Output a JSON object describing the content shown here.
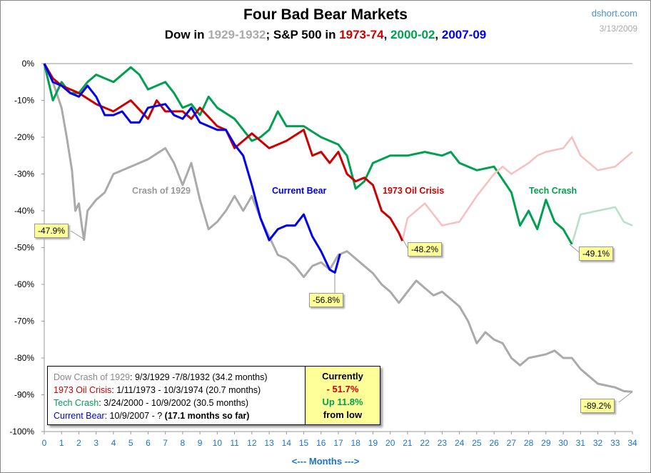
{
  "chart_data": {
    "type": "line",
    "title": "Four Bad Bear Markets",
    "subtitle_parts": [
      {
        "text": "Dow in ",
        "color": "#000000"
      },
      {
        "text": "1929-1932",
        "color": "#aaaaaa"
      },
      {
        "text": "; S&P 500 in ",
        "color": "#000000"
      },
      {
        "text": "1973-74",
        "color": "#cc0000"
      },
      {
        "text": ", ",
        "color": "#000000"
      },
      {
        "text": "2000-02",
        "color": "#00a050"
      },
      {
        "text": ", ",
        "color": "#000000"
      },
      {
        "text": "2007-09",
        "color": "#0000ee"
      }
    ],
    "source": "dshort.com",
    "date": "3/13/2009",
    "xlabel": "<---  Months  --->",
    "xlim": [
      0,
      34
    ],
    "ylim": [
      -100,
      0
    ],
    "yticks": [
      "0%",
      "-10%",
      "-20%",
      "-30%",
      "-40%",
      "-50%",
      "-60%",
      "-70%",
      "-80%",
      "-90%",
      "-100%"
    ],
    "xticks": [
      "0",
      "1",
      "2",
      "3",
      "4",
      "5",
      "6",
      "7",
      "8",
      "9",
      "10",
      "11",
      "12",
      "13",
      "14",
      "15",
      "16",
      "17",
      "18",
      "19",
      "20",
      "21",
      "22",
      "23",
      "24",
      "25",
      "26",
      "27",
      "28",
      "29",
      "30",
      "31",
      "32",
      "33",
      "34"
    ],
    "grid": "horizontal line at 0%",
    "series": [
      {
        "name": "Crash of 1929",
        "color": "#aaaaaa",
        "x": [
          0,
          0.5,
          1,
          1.3,
          1.6,
          1.8,
          2,
          2.2,
          2.3,
          2.5,
          3,
          3.5,
          4,
          5,
          6,
          7,
          7.5,
          8,
          8.5,
          9,
          9.5,
          10,
          10.5,
          11,
          11.5,
          12,
          12.5,
          13,
          13.5,
          14,
          14.5,
          15,
          15.5,
          16,
          16.5,
          17,
          17.5,
          18,
          18.5,
          19,
          19.5,
          20,
          20.5,
          21,
          21.5,
          22,
          22.5,
          23,
          23.5,
          24,
          24.5,
          25,
          25.5,
          26,
          26.5,
          27,
          27.5,
          28,
          29,
          29.5,
          30,
          30.5,
          31,
          31.5,
          32,
          33,
          33.5,
          34
        ],
        "y": [
          0,
          -5,
          -12,
          -20,
          -29,
          -40,
          -38,
          -45,
          -47.9,
          -40,
          -37,
          -35,
          -30,
          -28,
          -26,
          -23,
          -27,
          -33,
          -27,
          -37,
          -45,
          -43,
          -40,
          -36,
          -40,
          -36,
          -42,
          -47,
          -52,
          -53,
          -55,
          -58,
          -55,
          -54,
          -56,
          -52,
          -51,
          -53,
          -55,
          -57,
          -60,
          -62,
          -65,
          -62,
          -59,
          -61,
          -63,
          -62,
          -64,
          -66,
          -70,
          -76,
          -73,
          -75,
          -76,
          -80,
          -82,
          -80,
          -79,
          -78,
          -80,
          -80,
          -83,
          -85,
          -87,
          -88,
          -89,
          -89.2
        ]
      },
      {
        "name": "1973 Oil Crisis",
        "color": "#cc0000",
        "faded_color": "#f4c0c0",
        "end_month": 20.7,
        "x": [
          0,
          0.5,
          1,
          2,
          3,
          4,
          5,
          6,
          6.5,
          7,
          8,
          8.5,
          9,
          10,
          10.5,
          11,
          11.5,
          12,
          13,
          14,
          15,
          15.5,
          16,
          16.5,
          17,
          17.5,
          18,
          18.5,
          19,
          19.5,
          20,
          20.5,
          20.7,
          21,
          22,
          23,
          24,
          25,
          26,
          26.5,
          27,
          28,
          28.5,
          29,
          30,
          30.5,
          31,
          32,
          33,
          34
        ],
        "y": [
          0,
          -4,
          -6,
          -8,
          -11,
          -13,
          -10,
          -15,
          -10,
          -13,
          -13,
          -15,
          -12,
          -17,
          -18,
          -23,
          -21,
          -19,
          -23,
          -21,
          -18,
          -25,
          -24,
          -27,
          -24,
          -30,
          -32,
          -31,
          -33,
          -40,
          -42,
          -46,
          -48.2,
          -42,
          -38,
          -44,
          -43,
          -36,
          -30,
          -28,
          -30,
          -27,
          -25,
          -24,
          -23,
          -20,
          -25,
          -29,
          -28,
          -24
        ]
      },
      {
        "name": "Tech Crash",
        "color": "#00a050",
        "faded_color": "#b8e0c8",
        "end_month": 30.5,
        "x": [
          0,
          0.5,
          1,
          1.5,
          2,
          2.5,
          3,
          4,
          5,
          5.5,
          6,
          7,
          7.5,
          8,
          8.5,
          9,
          9.5,
          10,
          11,
          12,
          12.5,
          13,
          13.5,
          14,
          15,
          16,
          17,
          17.5,
          18,
          18.5,
          19,
          20,
          21,
          22,
          23,
          23.5,
          24,
          25,
          26,
          27,
          27.5,
          28,
          28.5,
          29,
          29.5,
          30,
          30.5,
          31,
          32,
          33,
          33.5,
          34
        ],
        "y": [
          0,
          -10,
          -5,
          -8,
          -8,
          -5,
          -3,
          -5,
          -1,
          -3,
          -7,
          -5,
          -8,
          -12,
          -11,
          -14,
          -9,
          -12,
          -15,
          -21,
          -20,
          -18,
          -13,
          -17,
          -17,
          -20,
          -22,
          -25,
          -34,
          -32,
          -27,
          -25,
          -25,
          -24,
          -25,
          -24,
          -27,
          -29,
          -28,
          -35,
          -44,
          -40,
          -45,
          -37,
          -43,
          -45,
          -49.1,
          -41,
          -40,
          -39,
          -43,
          -44
        ]
      },
      {
        "name": "Current Bear",
        "color": "#0000ee",
        "end_month": 17.1,
        "x": [
          0,
          0.5,
          1,
          1.5,
          2,
          2.5,
          3,
          3.5,
          4,
          4.5,
          5,
          5.5,
          6,
          7,
          7.5,
          8,
          8.5,
          9,
          10,
          10.5,
          11,
          11.5,
          12,
          12.5,
          13,
          13.5,
          14,
          14.5,
          15,
          15.5,
          16,
          16.5,
          16.8,
          17.1
        ],
        "y": [
          0,
          -5,
          -6,
          -8,
          -9,
          -6,
          -9,
          -14,
          -14,
          -13,
          -16,
          -16,
          -12,
          -11,
          -14,
          -15,
          -12,
          -16,
          -18,
          -18,
          -22,
          -25,
          -33,
          -42,
          -48,
          -45,
          -44,
          -44,
          -41,
          -47,
          -51,
          -56,
          -56.8,
          -51.7
        ]
      }
    ],
    "annotations": {
      "callouts": [
        "-47.9%",
        "-56.8%",
        "-48.2%",
        "-49.1%",
        "-89.2%"
      ],
      "series_labels": [
        "Crash of 1929",
        "Current Bear",
        "1973 Oil Crisis",
        "Tech Crash"
      ]
    }
  },
  "legend": {
    "rows": [
      {
        "name": "Dow Crash of 1929",
        "color": "#888888",
        "text": ": 9/3/1929  -7/8/1932  (34.2 months)"
      },
      {
        "name": "1973 Oil Crisis",
        "color": "#cc0000",
        "text": ": 1/11/1973  - 10/3/1974  (20.7 months)"
      },
      {
        "name": "Tech Crash",
        "color": "#00a050",
        "text": ":  3/24/2000  - 10/9/2002  (30.5 months)"
      },
      {
        "name": "Current Bear",
        "color": "#0000ee",
        "text": ": 10/9/2007  - ?  ",
        "bold": "(17.1 months so far)"
      }
    ],
    "current": {
      "label": "Currently",
      "change": "- 51.7%",
      "up": "Up 11.8%",
      "from": "from low"
    }
  }
}
